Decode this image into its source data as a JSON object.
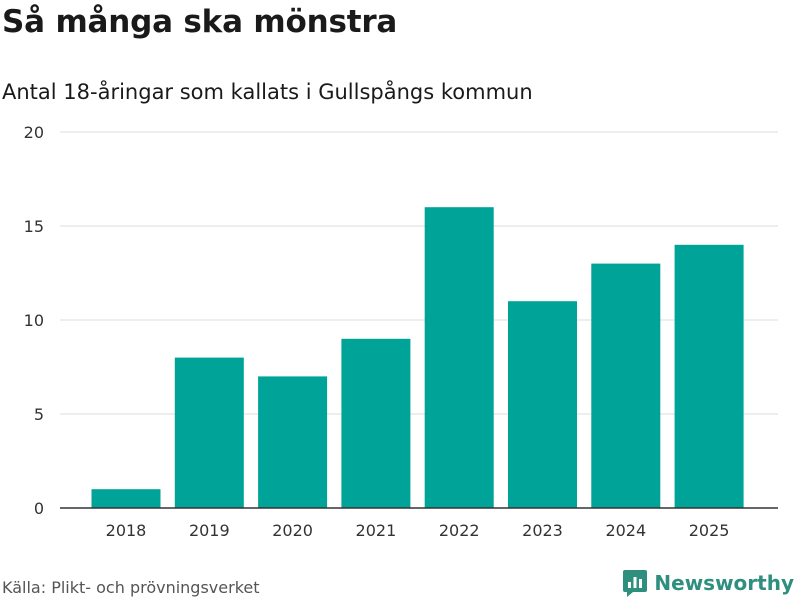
{
  "header": {
    "title": "Så många ska mönstra",
    "subtitle": "Antal 18-åringar som kallats i Gullspångs kommun"
  },
  "footer": {
    "source": "Källa: Plikt- och prövningsverket",
    "brand": "Newsworthy"
  },
  "colors": {
    "bar": "#00a398",
    "grid": "#dddddd",
    "axis": "#333333",
    "brand": "#2f8f7f"
  },
  "chart_data": {
    "type": "bar",
    "title": "Så många ska mönstra",
    "subtitle": "Antal 18-åringar som kallats i Gullspångs kommun",
    "xlabel": "",
    "ylabel": "",
    "categories": [
      "2018",
      "2019",
      "2020",
      "2021",
      "2022",
      "2023",
      "2024",
      "2025"
    ],
    "values": [
      1,
      8,
      7,
      9,
      16,
      11,
      13,
      14
    ],
    "ylim": [
      0,
      20
    ],
    "yticks": [
      0,
      5,
      10,
      15,
      20
    ],
    "grid": true,
    "legend": "none"
  }
}
